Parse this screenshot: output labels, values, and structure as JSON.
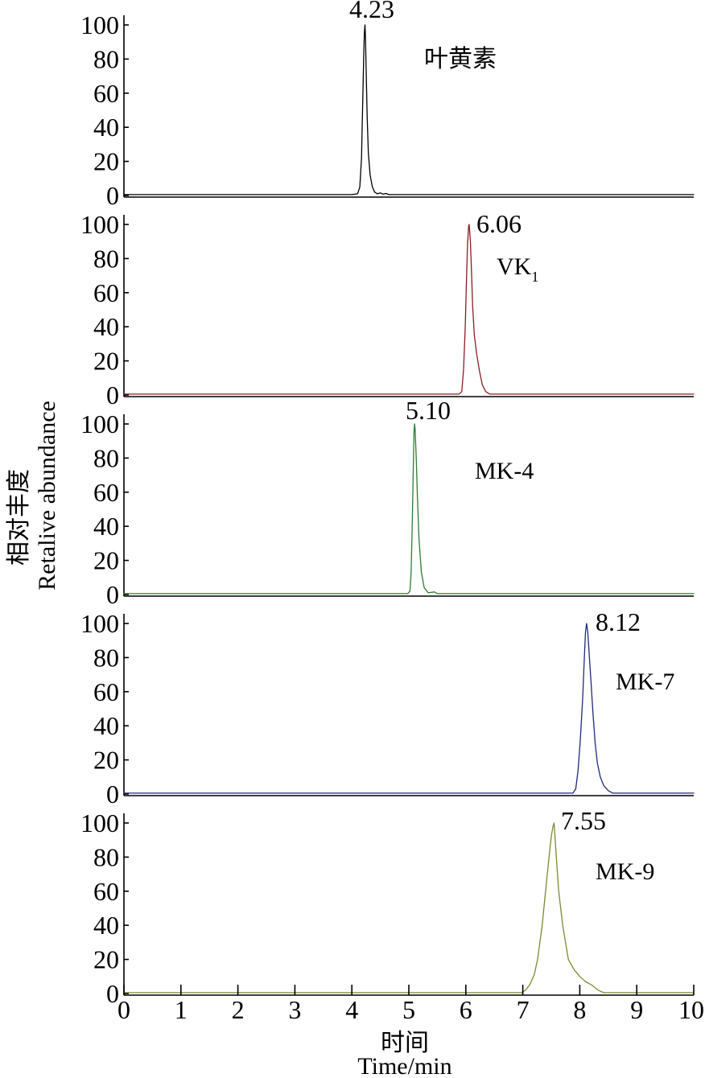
{
  "axes": {
    "y_label_cn": "相对丰度",
    "y_label_en": "Retalive abundance",
    "x_label_cn": "时间",
    "x_label_en": "Time/min"
  },
  "x_axis": {
    "xlim": [
      0,
      10
    ],
    "ticks": [
      0,
      1,
      2,
      3,
      4,
      5,
      6,
      7,
      8,
      9,
      10
    ]
  },
  "chart_data": [
    {
      "type": "line",
      "label": "叶黄素",
      "peak_label": "4.23",
      "color": "#000000",
      "ylim": [
        0,
        100
      ],
      "y_ticks": [
        0,
        20,
        40,
        60,
        80,
        100
      ],
      "x": [
        0,
        4.0,
        4.1,
        4.14,
        4.17,
        4.19,
        4.21,
        4.22,
        4.23,
        4.24,
        4.25,
        4.27,
        4.29,
        4.32,
        4.36,
        4.4,
        4.45,
        4.5,
        4.55,
        4.6,
        4.65,
        10
      ],
      "y": [
        0.5,
        0.5,
        1,
        5,
        22,
        55,
        85,
        96,
        100,
        92,
        75,
        45,
        25,
        12,
        5,
        2,
        1,
        1.5,
        0.8,
        1.2,
        0.5,
        0.5
      ]
    },
    {
      "type": "line",
      "label": "VK",
      "label_sub": "1",
      "peak_label": "6.06",
      "color": "#8b1e24",
      "ylim": [
        0,
        100
      ],
      "y_ticks": [
        0,
        20,
        40,
        60,
        80,
        100
      ],
      "x": [
        0,
        5.88,
        5.93,
        5.96,
        5.99,
        6.01,
        6.03,
        6.05,
        6.06,
        6.08,
        6.1,
        6.12,
        6.15,
        6.19,
        6.24,
        6.29,
        6.35,
        6.42,
        10
      ],
      "y": [
        0.5,
        0.5,
        2,
        15,
        40,
        65,
        88,
        99,
        100,
        90,
        72,
        52,
        35,
        24,
        14,
        6,
        2,
        0.5,
        0.5
      ]
    },
    {
      "type": "line",
      "label": "MK-4",
      "peak_label": "5.10",
      "color": "#2e7d32",
      "ylim": [
        0,
        100
      ],
      "y_ticks": [
        0,
        20,
        40,
        60,
        80,
        100
      ],
      "x": [
        0,
        4.98,
        5.02,
        5.04,
        5.06,
        5.08,
        5.09,
        5.1,
        5.11,
        5.13,
        5.15,
        5.18,
        5.22,
        5.27,
        5.34,
        5.45,
        5.5,
        10
      ],
      "y": [
        0.5,
        0.5,
        2,
        12,
        40,
        78,
        95,
        100,
        97,
        80,
        58,
        32,
        13,
        4,
        1,
        1.5,
        0.5,
        0.5
      ]
    },
    {
      "type": "line",
      "label": "MK-7",
      "peak_label": "8.12",
      "color": "#1f2a7a",
      "ylim": [
        0,
        100
      ],
      "y_ticks": [
        0,
        20,
        40,
        60,
        80,
        100
      ],
      "x": [
        0,
        7.88,
        7.93,
        7.97,
        8.01,
        8.05,
        8.08,
        8.1,
        8.12,
        8.14,
        8.17,
        8.2,
        8.23,
        8.27,
        8.31,
        8.36,
        8.42,
        8.5,
        8.58,
        10
      ],
      "y": [
        0.5,
        0.5,
        3,
        14,
        32,
        55,
        80,
        95,
        100,
        95,
        80,
        64,
        48,
        30,
        18,
        10,
        5,
        2,
        0.5,
        0.5
      ]
    },
    {
      "type": "line",
      "label": "MK-9",
      "peak_label": "7.55",
      "color": "#7c8a2e",
      "ylim": [
        0,
        100
      ],
      "y_ticks": [
        0,
        20,
        40,
        60,
        80,
        100
      ],
      "x": [
        0,
        6.98,
        7.05,
        7.12,
        7.2,
        7.26,
        7.34,
        7.4,
        7.46,
        7.5,
        7.53,
        7.55,
        7.58,
        7.63,
        7.7,
        7.8,
        7.9,
        8.0,
        8.1,
        8.21,
        8.32,
        8.42,
        10
      ],
      "y": [
        0.5,
        0.5,
        2,
        5,
        11,
        20,
        40,
        60,
        80,
        92,
        98,
        100,
        84,
        60,
        40,
        20,
        14,
        10,
        7,
        5,
        2,
        0.5,
        0.5
      ]
    }
  ]
}
